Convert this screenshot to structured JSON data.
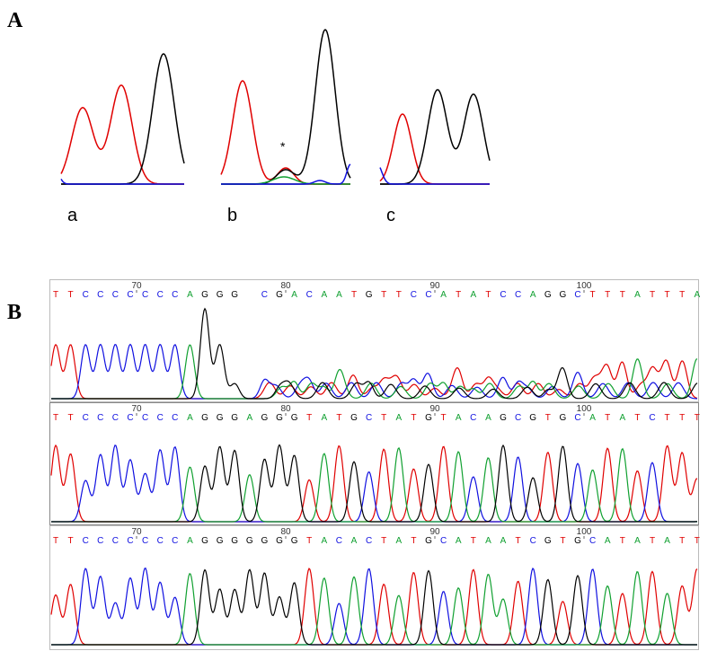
{
  "figure": {
    "panel_a_label": "A",
    "panel_b_label": "B",
    "subpanels": [
      {
        "label": "a"
      },
      {
        "label": "b",
        "annotation": "*"
      },
      {
        "label": "c"
      }
    ],
    "traces": [
      {
        "ticks": [
          70,
          80,
          90,
          100
        ],
        "sequence": "TTCCCCCCCAGGG CGACAATGTTCCATATCCAGGCTTTATTTAT"
      },
      {
        "ticks": [
          70,
          80,
          90,
          100
        ],
        "sequence": "TTCCCCCCCAGGGAGGGTATGCTATGTACAGCGTGCATATCTTTG"
      },
      {
        "ticks": [
          70,
          80,
          90,
          100
        ],
        "sequence": "TTCCCCCCCAGGGGGGGTACACTATGCATAATCGTGCATATATT"
      }
    ]
  }
}
